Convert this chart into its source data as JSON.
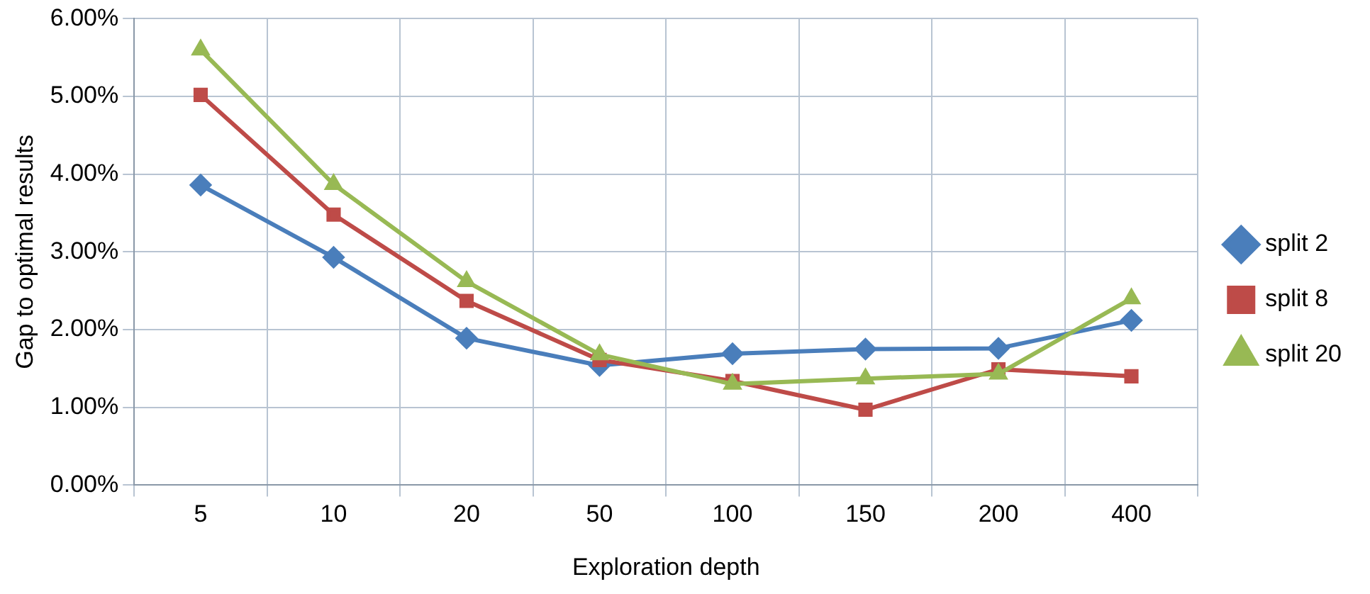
{
  "chart_data": {
    "type": "line",
    "xlabel": "Exploration depth",
    "ylabel": "Gap to optimal results",
    "categories": [
      "5",
      "10",
      "20",
      "50",
      "100",
      "150",
      "200",
      "400"
    ],
    "ylim": [
      0,
      6
    ],
    "yticks": [
      {
        "value": 0,
        "label": "0.00%"
      },
      {
        "value": 1,
        "label": "1.00%"
      },
      {
        "value": 2,
        "label": "2.00%"
      },
      {
        "value": 3,
        "label": "3.00%"
      },
      {
        "value": 4,
        "label": "4.00%"
      },
      {
        "value": 5,
        "label": "5.00%"
      },
      {
        "value": 6,
        "label": "6.00%"
      }
    ],
    "grid": true,
    "legend": "right",
    "line_style": "solid",
    "series": [
      {
        "name": "split 2",
        "color": "#4a7ebb",
        "marker": "diamond",
        "values": [
          3.86,
          2.93,
          1.89,
          1.54,
          1.69,
          1.75,
          1.76,
          2.12
        ]
      },
      {
        "name": "split 8",
        "color": "#be4b48",
        "marker": "square",
        "values": [
          5.02,
          3.48,
          2.37,
          1.61,
          1.34,
          0.97,
          1.49,
          1.4
        ]
      },
      {
        "name": "split 20",
        "color": "#98b954",
        "marker": "triangle",
        "values": [
          5.6,
          3.87,
          2.62,
          1.68,
          1.3,
          1.37,
          1.43,
          2.4
        ]
      }
    ]
  }
}
